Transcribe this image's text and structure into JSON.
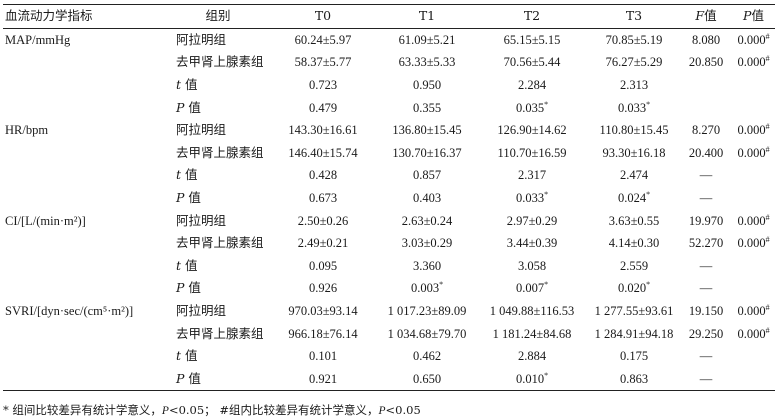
{
  "header": {
    "indicator": "血流动力学指标",
    "group": "组别",
    "t0": "T0",
    "t1": "T1",
    "t2": "T2",
    "t3": "T3",
    "f_symbol": "F",
    "f_suffix": "值",
    "p_symbol": "P",
    "p_suffix": "值"
  },
  "stat_labels": {
    "t_symbol": "t",
    "t_suffix": " 值",
    "p_symbol": "P",
    "p_suffix": " 值"
  },
  "markers": {
    "between": "*",
    "within": "#"
  },
  "sections": [
    {
      "indicator": "MAP/mmHg",
      "rows": [
        {
          "group": "阿拉明组",
          "t0": "60.24±5.97",
          "t1": "61.09±5.21",
          "t2": "65.15±5.15",
          "t3": "70.85±5.19",
          "f": "8.080",
          "p": "0.000"
        },
        {
          "group": "去甲肾上腺素组",
          "t0": "58.37±5.77",
          "t1": "63.33±5.33",
          "t2": "70.56±5.44",
          "t3": "76.27±5.29",
          "f": "20.850",
          "p": "0.000"
        }
      ],
      "t_row": {
        "t0": "0.723",
        "t1": "0.950",
        "t2": "2.284",
        "t3": "2.313",
        "f": ""
      },
      "p_row": {
        "t0": "0.479",
        "t1": "0.355",
        "t2": "0.035",
        "t3": "0.033",
        "f": ""
      },
      "p_sig": {
        "t0": false,
        "t1": false,
        "t2": true,
        "t3": true
      }
    },
    {
      "indicator": "HR/bpm",
      "rows": [
        {
          "group": "阿拉明组",
          "t0": "143.30±16.61",
          "t1": "136.80±15.45",
          "t2": "126.90±14.62",
          "t3": "110.80±15.45",
          "f": "8.270",
          "p": "0.000"
        },
        {
          "group": "去甲肾上腺素组",
          "t0": "146.40±15.74",
          "t1": "130.70±16.37",
          "t2": "110.70±16.59",
          "t3": "93.30±16.18",
          "f": "20.400",
          "p": "0.000"
        }
      ],
      "t_row": {
        "t0": "0.428",
        "t1": "0.857",
        "t2": "2.317",
        "t3": "2.474",
        "f": "—"
      },
      "p_row": {
        "t0": "0.673",
        "t1": "0.403",
        "t2": "0.033",
        "t3": "0.024",
        "f": "—"
      },
      "p_sig": {
        "t0": false,
        "t1": false,
        "t2": true,
        "t3": true
      }
    },
    {
      "indicator": "CI/[L/(min·m²)]",
      "rows": [
        {
          "group": "阿拉明组",
          "t0": "2.50±0.26",
          "t1": "2.63±0.24",
          "t2": "2.97±0.29",
          "t3": "3.63±0.55",
          "f": "19.970",
          "p": "0.000"
        },
        {
          "group": "去甲肾上腺素组",
          "t0": "2.49±0.21",
          "t1": "3.03±0.29",
          "t2": "3.44±0.39",
          "t3": "4.14±0.30",
          "f": "52.270",
          "p": "0.000"
        }
      ],
      "t_row": {
        "t0": "0.095",
        "t1": "3.360",
        "t2": "3.058",
        "t3": "2.559",
        "f": "—"
      },
      "p_row": {
        "t0": "0.926",
        "t1": "0.003",
        "t2": "0.007",
        "t3": "0.020",
        "f": "—"
      },
      "p_sig": {
        "t0": false,
        "t1": true,
        "t2": true,
        "t3": true
      }
    },
    {
      "indicator": "SVRI/[dyn·sec/(cm⁵·m²)]",
      "rows": [
        {
          "group": "阿拉明组",
          "t0": "970.03±93.14",
          "t1": "1 017.23±89.09",
          "t2": "1 049.88±116.53",
          "t3": "1 277.55±93.61",
          "f": "19.150",
          "p": "0.000"
        },
        {
          "group": "去甲肾上腺素组",
          "t0": "966.18±76.14",
          "t1": "1 034.68±79.70",
          "t2": "1 181.24±84.68",
          "t3": "1 284.91±94.18",
          "f": "29.250",
          "p": "0.000"
        }
      ],
      "t_row": {
        "t0": "0.101",
        "t1": "0.462",
        "t2": "2.884",
        "t3": "0.175",
        "f": "—"
      },
      "p_row": {
        "t0": "0.921",
        "t1": "0.650",
        "t2": "0.010",
        "t3": "0.863",
        "f": "—"
      },
      "p_sig": {
        "t0": false,
        "t1": false,
        "t2": true,
        "t3": false
      }
    }
  ],
  "footnote": {
    "between_text": "* 组间比较差异有统计学意义，",
    "p_symbol": "P",
    "between_threshold": "<0.05；",
    "within_text": "#组内比较差异有统计学意义，",
    "within_threshold": "<0.05"
  }
}
